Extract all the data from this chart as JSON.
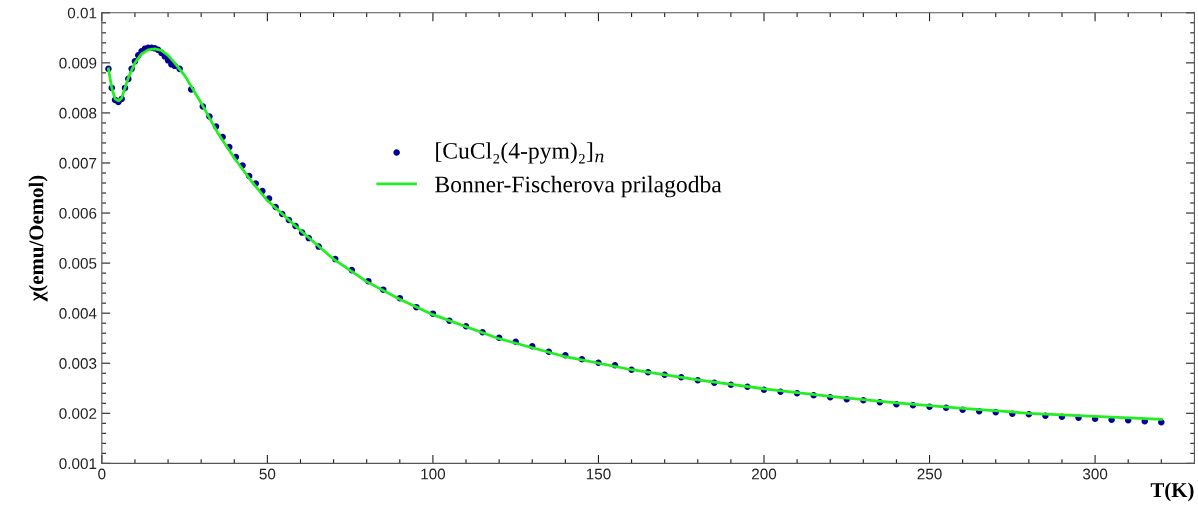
{
  "chart_data": {
    "type": "scatter",
    "xlabel": "T(K)",
    "ylabel": "χ(emu/Oemol)",
    "xlim": [
      0,
      330
    ],
    "xticks": [
      0,
      {
        "value": 10,
        "label": null
      },
      {
        "value": 20,
        "label": null
      },
      {
        "value": 30,
        "label": null
      },
      {
        "value": 40,
        "label": null
      },
      50,
      {
        "value": 60,
        "label": null
      },
      {
        "value": 70,
        "label": null
      },
      {
        "value": 80,
        "label": null
      },
      {
        "value": 90,
        "label": null
      },
      100,
      {
        "value": 110,
        "label": null
      },
      {
        "value": 120,
        "label": null
      },
      {
        "value": 130,
        "label": null
      },
      {
        "value": 140,
        "label": null
      },
      150,
      {
        "value": 160,
        "label": null
      },
      {
        "value": 170,
        "label": null
      },
      {
        "value": 180,
        "label": null
      },
      {
        "value": 190,
        "label": null
      },
      200,
      {
        "value": 210,
        "label": null
      },
      {
        "value": 220,
        "label": null
      },
      {
        "value": 230,
        "label": null
      },
      {
        "value": 240,
        "label": null
      },
      250,
      {
        "value": 260,
        "label": null
      },
      {
        "value": 270,
        "label": null
      },
      {
        "value": 280,
        "label": null
      },
      {
        "value": 290,
        "label": null
      },
      300,
      {
        "value": 310,
        "label": null
      },
      {
        "value": 320,
        "label": null
      }
    ],
    "ylim": [
      0.001,
      0.01
    ],
    "yticks": [
      0.001,
      {
        "value": 0.0012,
        "label": null
      },
      {
        "value": 0.0014,
        "label": null
      },
      {
        "value": 0.0016,
        "label": null
      },
      {
        "value": 0.0018,
        "label": null
      },
      0.002,
      {
        "value": 0.0022,
        "label": null
      },
      {
        "value": 0.0024,
        "label": null
      },
      {
        "value": 0.0026,
        "label": null
      },
      {
        "value": 0.0028,
        "label": null
      },
      0.003,
      {
        "value": 0.0032,
        "label": null
      },
      {
        "value": 0.0034,
        "label": null
      },
      {
        "value": 0.0036,
        "label": null
      },
      {
        "value": 0.0038,
        "label": null
      },
      0.004,
      {
        "value": 0.0042,
        "label": null
      },
      {
        "value": 0.0044,
        "label": null
      },
      {
        "value": 0.0046,
        "label": null
      },
      {
        "value": 0.0048,
        "label": null
      },
      0.005,
      {
        "value": 0.0052,
        "label": null
      },
      {
        "value": 0.0054,
        "label": null
      },
      {
        "value": 0.0056,
        "label": null
      },
      {
        "value": 0.0058,
        "label": null
      },
      0.006,
      {
        "value": 0.0062,
        "label": null
      },
      {
        "value": 0.0064,
        "label": null
      },
      {
        "value": 0.0066,
        "label": null
      },
      {
        "value": 0.0068,
        "label": null
      },
      0.007,
      {
        "value": 0.0072,
        "label": null
      },
      {
        "value": 0.0074,
        "label": null
      },
      {
        "value": 0.0076,
        "label": null
      },
      {
        "value": 0.0078,
        "label": null
      },
      0.008,
      {
        "value": 0.0082,
        "label": null
      },
      {
        "value": 0.0084,
        "label": null
      },
      {
        "value": 0.0086,
        "label": null
      },
      {
        "value": 0.0088,
        "label": null
      },
      0.009,
      {
        "value": 0.0092,
        "label": null
      },
      {
        "value": 0.0094,
        "label": null
      },
      {
        "value": 0.0096,
        "label": null
      },
      {
        "value": 0.0098,
        "label": null
      },
      0.01
    ],
    "grid": false,
    "legend": "top center",
    "series": [
      {
        "name": "[CuCl₂(4-pym)₂]$_{n}$",
        "marker": "circle",
        "color": "#000099",
        "x": [
          2,
          3,
          4,
          5,
          6,
          7,
          8,
          9,
          10,
          11,
          12,
          13,
          14,
          15,
          16,
          17,
          18,
          19,
          20,
          21,
          22,
          23.5,
          27,
          30.5,
          32.5,
          34.5,
          36.5,
          38.5,
          40.5,
          42.5,
          44.5,
          46.5,
          48.5,
          50.5,
          52.5,
          54.5,
          56.5,
          58.5,
          60.5,
          62.5,
          65.5,
          70.5,
          75.5,
          80.5,
          85,
          90,
          95,
          100,
          105,
          110,
          115,
          120,
          125,
          130,
          135,
          140,
          145,
          150,
          155,
          160,
          165,
          170,
          175,
          180,
          185,
          190,
          195,
          200,
          205,
          210,
          215,
          220,
          225,
          230,
          235,
          240,
          245,
          250,
          255,
          260,
          265,
          270,
          275,
          280,
          285,
          290,
          295,
          300,
          305,
          310,
          315,
          320
        ],
        "values": [
          0.00888,
          0.0085,
          0.00826,
          0.00822,
          0.00828,
          0.0085,
          0.00868,
          0.00888,
          0.00903,
          0.00915,
          0.00923,
          0.00928,
          0.0093,
          0.0093,
          0.00929,
          0.00926,
          0.0092,
          0.00913,
          0.00905,
          0.00897,
          0.00894,
          0.00888,
          0.00847,
          0.00813,
          0.00793,
          0.00773,
          0.00752,
          0.00732,
          0.00712,
          0.00695,
          0.00674,
          0.00659,
          0.00644,
          0.00629,
          0.00612,
          0.00598,
          0.00586,
          0.00574,
          0.00561,
          0.0055,
          0.00533,
          0.00508,
          0.00486,
          0.00464,
          0.00447,
          0.0043,
          0.00412,
          0.00399,
          0.00385,
          0.00374,
          0.00362,
          0.00351,
          0.00343,
          0.00334,
          0.00323,
          0.00316,
          0.00308,
          0.00301,
          0.00296,
          0.00287,
          0.00282,
          0.00277,
          0.00272,
          0.00266,
          0.00261,
          0.00257,
          0.00253,
          0.00247,
          0.00243,
          0.0024,
          0.00236,
          0.00232,
          0.00228,
          0.00226,
          0.00222,
          0.00218,
          0.00216,
          0.00213,
          0.00211,
          0.00207,
          0.00204,
          0.00202,
          0.00199,
          0.00198,
          0.00195,
          0.00193,
          0.00191,
          0.00189,
          0.00187,
          0.00186,
          0.00184,
          0.00182
        ]
      },
      {
        "name": "Bonner-Fischerova prilagodba",
        "type": "line",
        "marker": "none",
        "line_style": "solid",
        "color": "#22ee22",
        "x": [
          2,
          3,
          4,
          5,
          6,
          8,
          10,
          12,
          14,
          16,
          18,
          20,
          22,
          25,
          30,
          35,
          40,
          45,
          50,
          60,
          70,
          80,
          90,
          100,
          120,
          140,
          160,
          180,
          200,
          220,
          240,
          260,
          280,
          300,
          320
        ],
        "values": [
          0.00888,
          0.0085,
          0.00828,
          0.00824,
          0.0083,
          0.0087,
          0.009,
          0.00918,
          0.00926,
          0.00928,
          0.00925,
          0.00915,
          0.009,
          0.00875,
          0.0082,
          0.0076,
          0.0071,
          0.00665,
          0.00625,
          0.00565,
          0.00508,
          0.00463,
          0.00428,
          0.00397,
          0.00349,
          0.00313,
          0.00287,
          0.00267,
          0.00249,
          0.00234,
          0.00221,
          0.0021,
          0.002,
          0.00194,
          0.00188
        ]
      }
    ]
  }
}
